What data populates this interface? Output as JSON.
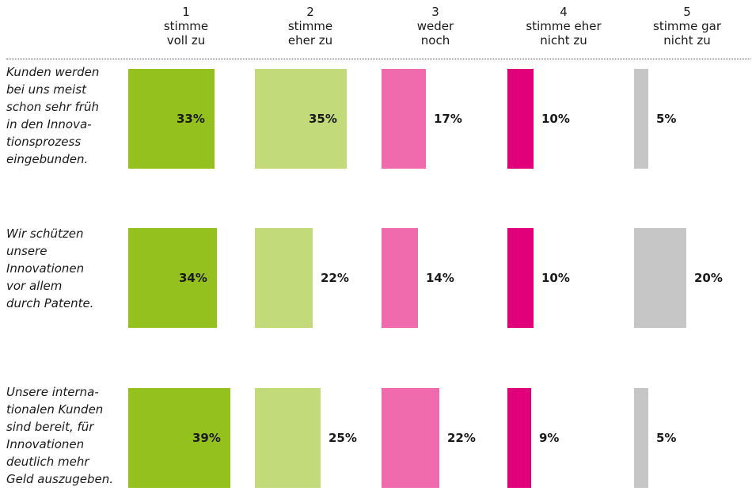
{
  "chart_data": {
    "type": "bar",
    "columns": [
      {
        "num": "1",
        "label": "stimme\nvoll zu",
        "color": "#95c11f"
      },
      {
        "num": "2",
        "label": "stimme\neher zu",
        "color": "#c3da7a"
      },
      {
        "num": "3",
        "label": "weder\nnoch",
        "color": "#f06bae"
      },
      {
        "num": "4",
        "label": "stimme eher\nnicht zu",
        "color": "#e2007a"
      },
      {
        "num": "5",
        "label": "stimme gar\nnicht zu",
        "color": "#c6c6c6"
      }
    ],
    "rows": [
      {
        "label": "Kunden werden\nbei uns meist\nschon sehr früh\nin den Innova-\ntionsprozess\neingebunden.",
        "values": [
          33,
          35,
          17,
          10,
          5
        ],
        "value_labels": [
          "33%",
          "35%",
          "17%",
          "10%",
          "5%"
        ]
      },
      {
        "label": "Wir schützen\nunsere\nInnovationen\nvor allem\ndurch Patente.",
        "values": [
          34,
          22,
          14,
          10,
          20
        ],
        "value_labels": [
          "34%",
          "22%",
          "14%",
          "10%",
          "20%"
        ]
      },
      {
        "label": "Unsere interna-\ntionalen Kunden\nsind bereit, für\nInnovationen\ndeutlich mehr\nGeld auszugeben.",
        "values": [
          39,
          25,
          22,
          9,
          5
        ],
        "value_labels": [
          "39%",
          "25%",
          "22%",
          "9%",
          "5%"
        ]
      }
    ]
  }
}
